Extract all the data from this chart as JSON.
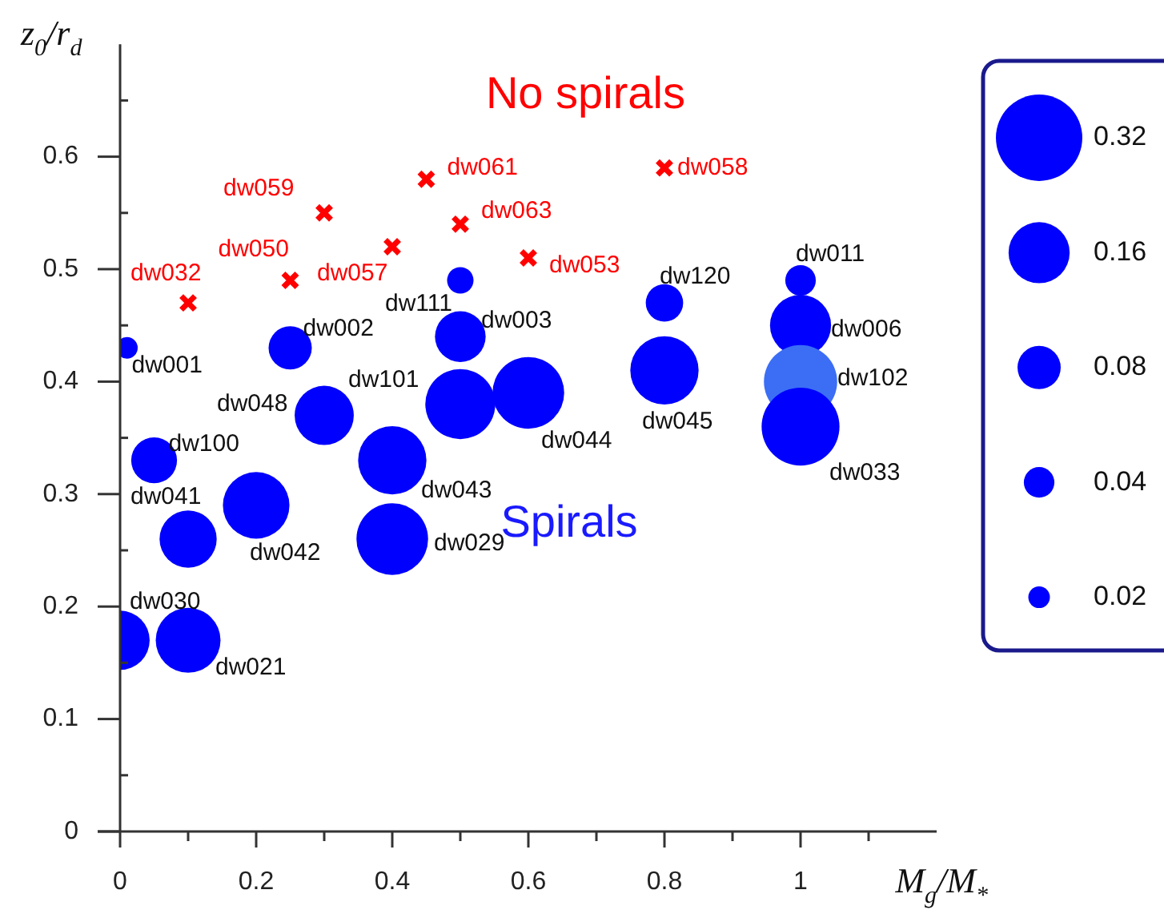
{
  "chart_data": {
    "type": "bubble",
    "xlabel": "M$_{g}$/M$_{*}$",
    "ylabel": "z$_{0}$/r$_{d}$",
    "xlim": [
      0,
      1.2
    ],
    "ylim": [
      0,
      0.7
    ],
    "xticks": [
      0,
      {
        "value": 0.1,
        "label": null
      },
      0.2,
      {
        "value": 0.3,
        "label": null
      },
      0.4,
      {
        "value": 0.5,
        "label": null
      },
      0.6,
      {
        "value": 0.7,
        "label": null
      },
      0.8,
      {
        "value": 0.9,
        "label": null
      },
      1,
      {
        "value": 1.1,
        "label": null
      }
    ],
    "yticks": [
      0,
      {
        "value": 0.05,
        "label": null
      },
      0.1,
      {
        "value": 0.15,
        "label": null
      },
      0.2,
      {
        "value": 0.25,
        "label": null
      },
      0.3,
      {
        "value": 0.35,
        "label": null
      },
      0.4,
      {
        "value": 0.45,
        "label": null
      },
      0.5,
      {
        "value": 0.55,
        "label": null
      },
      0.6,
      {
        "value": 0.65,
        "label": null
      }
    ],
    "size_legend": [
      0.32,
      0.16,
      0.08,
      0.04,
      0.02
    ],
    "legend": false,
    "grid": false,
    "series": [
      {
        "type": "bubble",
        "marker": "circle",
        "color": "#0000ff",
        "colors": [
          "#0000ff",
          "#0000ff",
          "#0000ff",
          "#0000ff",
          "#0000ff",
          "#0000ff",
          "#0000ff",
          "#3b6ef5",
          "#0000ff",
          "#0000ff",
          "#0000ff",
          "#0000ff",
          "#0000ff",
          "#0000ff",
          "#0000ff",
          "#0000ff",
          "#0000ff",
          "#0000ff",
          "#0000ff",
          "#0000ff"
        ],
        "x": [
          0.01,
          0.25,
          0.5,
          0.5,
          0.8,
          1,
          1,
          1,
          1,
          0.8,
          0.6,
          0.5,
          0.3,
          0.05,
          0.4,
          0.1,
          0.2,
          0.4,
          0,
          0.1
        ],
        "values": [
          0.43,
          0.43,
          0.44,
          0.49,
          0.47,
          0.49,
          0.45,
          0.4,
          0.36,
          0.41,
          0.39,
          0.38,
          0.37,
          0.33,
          0.33,
          0.26,
          0.29,
          0.26,
          0.17,
          0.17
        ],
        "sizes": [
          0.02,
          0.08,
          0.11,
          0.03,
          0.06,
          0.04,
          0.16,
          0.23,
          0.26,
          0.2,
          0.22,
          0.21,
          0.15,
          0.09,
          0.2,
          0.14,
          0.19,
          0.22,
          0.15,
          0.18
        ]
      },
      {
        "type": "scatter",
        "marker": "cross",
        "color": "#ff0000",
        "x": [
          0.1,
          0.25,
          0.3,
          0.4,
          0.45,
          0.5,
          0.6,
          0.8
        ],
        "values": [
          0.47,
          0.49,
          0.55,
          0.52,
          0.58,
          0.54,
          0.51,
          0.59
        ]
      }
    ],
    "annotations": [
      {
        "text": "dw001",
        "x": 0.01,
        "y": 0.43
      },
      {
        "text": "dw002",
        "x": 0.25,
        "y": 0.43
      },
      {
        "text": "dw003",
        "x": 0.5,
        "y": 0.44
      },
      {
        "text": "dw111",
        "x": 0.5,
        "y": 0.49
      },
      {
        "text": "dw120",
        "x": 0.8,
        "y": 0.47
      },
      {
        "text": "dw011",
        "x": 1,
        "y": 0.49
      },
      {
        "text": "dw006",
        "x": 1,
        "y": 0.45
      },
      {
        "text": "dw102",
        "x": 1,
        "y": 0.4
      },
      {
        "text": "dw033",
        "x": 1,
        "y": 0.36
      },
      {
        "text": "dw045",
        "x": 0.8,
        "y": 0.41
      },
      {
        "text": "dw044",
        "x": 0.6,
        "y": 0.39
      },
      {
        "text": "dw101",
        "x": 0.5,
        "y": 0.38
      },
      {
        "text": "dw048",
        "x": 0.3,
        "y": 0.37
      },
      {
        "text": "dw100",
        "x": 0.05,
        "y": 0.33
      },
      {
        "text": "dw043",
        "x": 0.4,
        "y": 0.33
      },
      {
        "text": "dw041",
        "x": 0.1,
        "y": 0.26
      },
      {
        "text": "dw042",
        "x": 0.2,
        "y": 0.29
      },
      {
        "text": "dw029",
        "x": 0.4,
        "y": 0.26
      },
      {
        "text": "dw030",
        "x": 0,
        "y": 0.17
      },
      {
        "text": "dw021",
        "x": 0.1,
        "y": 0.17
      },
      {
        "text": "dw032",
        "x": 0.1,
        "y": 0.47
      },
      {
        "text": "dw050",
        "x": 0.25,
        "y": 0.49
      },
      {
        "text": "dw059",
        "x": 0.3,
        "y": 0.55
      },
      {
        "text": "dw057",
        "x": 0.4,
        "y": 0.52
      },
      {
        "text": "dw061",
        "x": 0.45,
        "y": 0.58
      },
      {
        "text": "dw063",
        "x": 0.5,
        "y": 0.54
      },
      {
        "text": "dw053",
        "x": 0.6,
        "y": 0.51
      },
      {
        "text": "dw058",
        "x": 0.8,
        "y": 0.59
      },
      "No spirals",
      "Spirals"
    ]
  }
}
